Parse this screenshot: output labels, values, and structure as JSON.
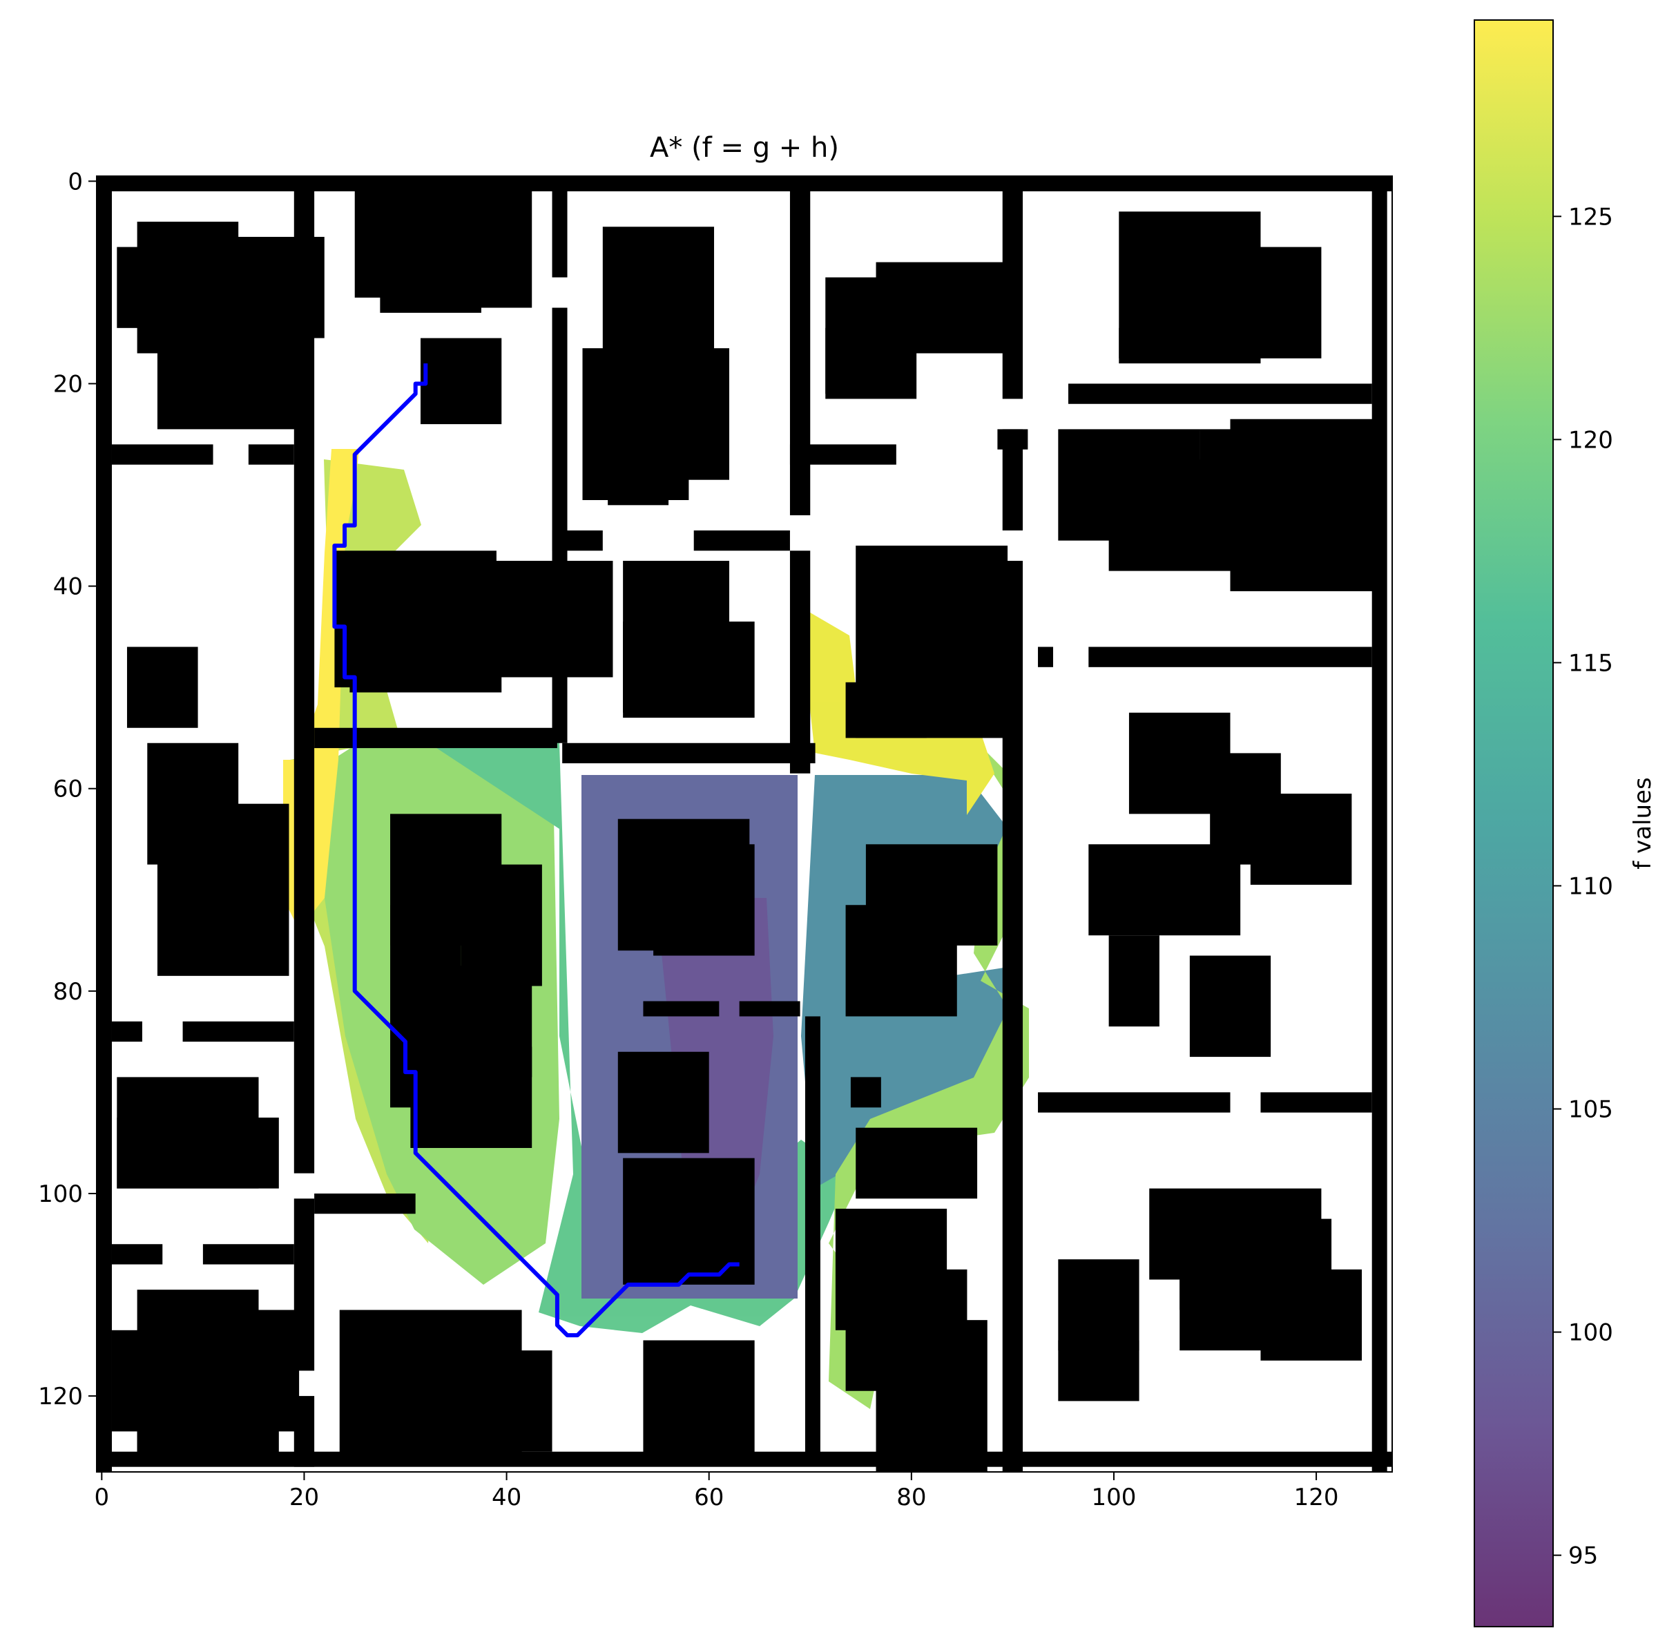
{
  "chart_data": {
    "type": "heatmap",
    "title": "A* (f = g + h)",
    "xlabel": "",
    "ylabel": "",
    "xlim": [
      -0.5,
      127.5
    ],
    "ylim": [
      127.5,
      -0.5
    ],
    "x_ticks": [
      0,
      20,
      40,
      60,
      80,
      100,
      120
    ],
    "y_ticks": [
      0,
      20,
      40,
      60,
      80,
      100,
      120
    ],
    "grid": false,
    "background": "occupancy grid map (black = obstacle, white = free)",
    "colorbar": {
      "label": "f values",
      "colormap": "viridis",
      "range": [
        93.4,
        129.4
      ],
      "ticks": [
        95,
        100,
        105,
        110,
        115,
        120,
        125
      ],
      "position": "right"
    },
    "path": {
      "color": "#0000ff",
      "points": [
        [
          32,
          18
        ],
        [
          32,
          20
        ],
        [
          31,
          20
        ],
        [
          31,
          21
        ],
        [
          25,
          27
        ],
        [
          25,
          34
        ],
        [
          24,
          34
        ],
        [
          24,
          36
        ],
        [
          23,
          36
        ],
        [
          23,
          37
        ],
        [
          23,
          44
        ],
        [
          24,
          44
        ],
        [
          24,
          45
        ],
        [
          24,
          49
        ],
        [
          25,
          49
        ],
        [
          25,
          50
        ],
        [
          25,
          80
        ],
        [
          30,
          85
        ],
        [
          30,
          88
        ],
        [
          31,
          88
        ],
        [
          31,
          89
        ],
        [
          31,
          96
        ],
        [
          45,
          110
        ],
        [
          45,
          113
        ],
        [
          46,
          114
        ],
        [
          47,
          114
        ],
        [
          52,
          109
        ],
        [
          57,
          109
        ],
        [
          58,
          108
        ],
        [
          61,
          108
        ],
        [
          62,
          107
        ],
        [
          63,
          107
        ]
      ]
    },
    "start": [
      32,
      18
    ],
    "goal": [
      63,
      107
    ]
  },
  "colors": {
    "path": "#0000ff",
    "obstacle": "#000000",
    "free": "#ffffff"
  }
}
